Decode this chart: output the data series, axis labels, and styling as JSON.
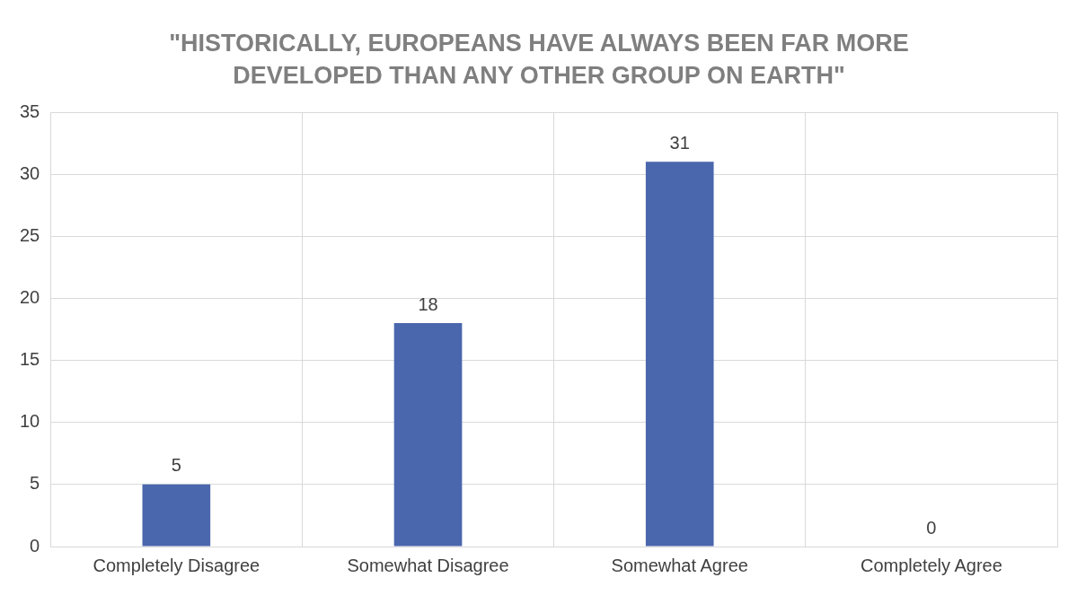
{
  "chart_data": {
    "type": "bar",
    "title": "\"HISTORICALLY, EUROPEANS HAVE ALWAYS BEEN FAR MORE DEVELOPED THAN ANY OTHER GROUP ON EARTH\"",
    "categories": [
      "Completely Disagree",
      "Somewhat Disagree",
      "Somewhat Agree",
      "Completely Agree"
    ],
    "values": [
      5,
      18,
      31,
      0
    ],
    "color": "#4a66ac",
    "ylim": [
      0,
      35
    ],
    "yticks": [
      0,
      5,
      10,
      15,
      20,
      25,
      30,
      35
    ],
    "grid": true,
    "data_labels": true,
    "legend": false
  }
}
